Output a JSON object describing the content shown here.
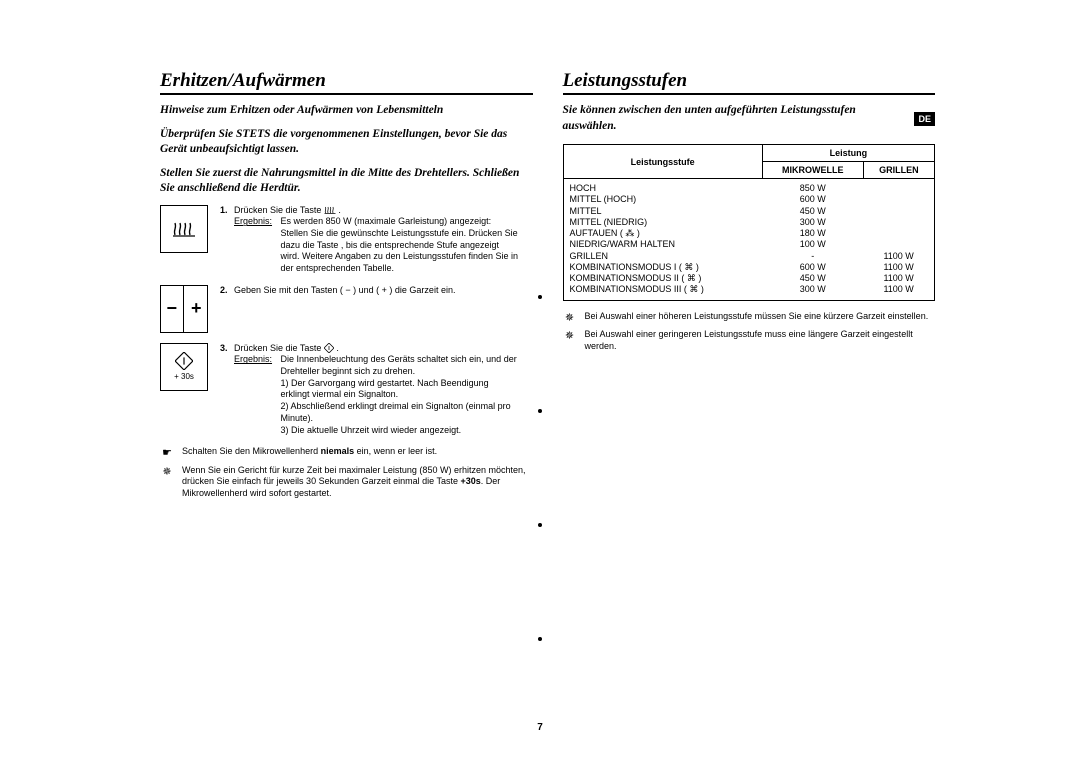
{
  "page_number": "7",
  "lang_tag": "DE",
  "left": {
    "title": "Erhitzen/Aufwärmen",
    "intro1": "Hinweise zum Erhitzen oder Aufwärmen von Lebensmitteln",
    "intro2": "Überprüfen Sie STETS die vorgenommenen Einstellungen, bevor Sie das Gerät unbeaufsichtigt lassen.",
    "intro3": "Stellen Sie zuerst die Nahrungsmittel in die Mitte des Drehtellers. Schließen Sie anschließend die Herdtür.",
    "step1_num": "1.",
    "step1_line": "Drücken Sie die Taste ",
    "erg_label": "Ergebnis:",
    "step1_erg": "Es werden 850 W (maximale Garleistung) angezeigt:\nStellen Sie die gewünschte Leistungsstufe ein. Drücken Sie dazu die Taste     , bis die entsprechende Stufe angezeigt wird. Weitere Angaben zu den Leistungsstufen finden Sie in der entsprechenden Tabelle.",
    "step2_num": "2.",
    "step2_line": "Geben Sie mit den Tasten ( − ) und ( + ) die Garzeit ein.",
    "step3_num": "3.",
    "step3_line": "Drücken Sie die Taste ",
    "step3_erg_intro": "Die Innenbeleuchtung des Geräts schaltet sich ein, und der Drehteller beginnt sich zu drehen.",
    "step3_erg_1": "1)  Der Garvorgang wird gestartet. Nach Beendigung erklingt viermal ein Signalton.",
    "step3_erg_2": "2)  Abschließend erklingt dreimal ein Signalton (einmal pro Minute).",
    "step3_erg_3": "3)  Die aktuelle Uhrzeit wird wieder angezeigt.",
    "note1_pre": "Schalten Sie den Mikrowellenherd ",
    "note1_bold": "niemals",
    "note1_post": " ein, wenn er leer ist.",
    "note2_a": "Wenn Sie ein Gericht für kurze Zeit bei maximaler Leistung (850 W) erhitzen möchten, drücken Sie einfach für jeweils 30 Sekunden Garzeit einmal die Taste ",
    "note2_bold": "+30s",
    "note2_b": ". Der Mikrowellenherd wird sofort gestartet.",
    "plus30_label": "+ 30s",
    "minus": "−",
    "plus": "+"
  },
  "right": {
    "title": "Leistungsstufen",
    "intro": "Sie können zwischen den unten aufgeführten Leistungsstufen auswählen.",
    "table": {
      "h_level": "Leistungsstufe",
      "h_power": "Leistung",
      "h_micro": "MIKROWELLE",
      "h_grill": "GRILLEN",
      "rows": [
        {
          "l": "HOCH",
          "m": "850 W",
          "g": ""
        },
        {
          "l": "MITTEL (HOCH)",
          "m": "600 W",
          "g": ""
        },
        {
          "l": "MITTEL",
          "m": "450 W",
          "g": ""
        },
        {
          "l": "MITTEL (NIEDRIG)",
          "m": "300 W",
          "g": ""
        },
        {
          "l": "AUFTAUEN ( ⁂ )",
          "m": "180 W",
          "g": ""
        },
        {
          "l": "NIEDRIG/WARM HALTEN",
          "m": "100 W",
          "g": ""
        },
        {
          "l": "GRILLEN",
          "m": "-",
          "g": "1100 W"
        },
        {
          "l": "KOMBINATIONSMODUS I ( ⌘ )",
          "m": "600 W",
          "g": "1100 W"
        },
        {
          "l": "KOMBINATIONSMODUS II ( ⌘ )",
          "m": "450 W",
          "g": "1100 W"
        },
        {
          "l": "KOMBINATIONSMODUS III ( ⌘ )",
          "m": "300 W",
          "g": "1100 W"
        }
      ]
    },
    "note1": "Bei Auswahl einer höheren Leistungsstufe müssen Sie eine kürzere Garzeit einstellen.",
    "note2": "Bei Auswahl einer geringeren Leistungsstufe muss eine längere Garzeit eingestellt werden."
  }
}
